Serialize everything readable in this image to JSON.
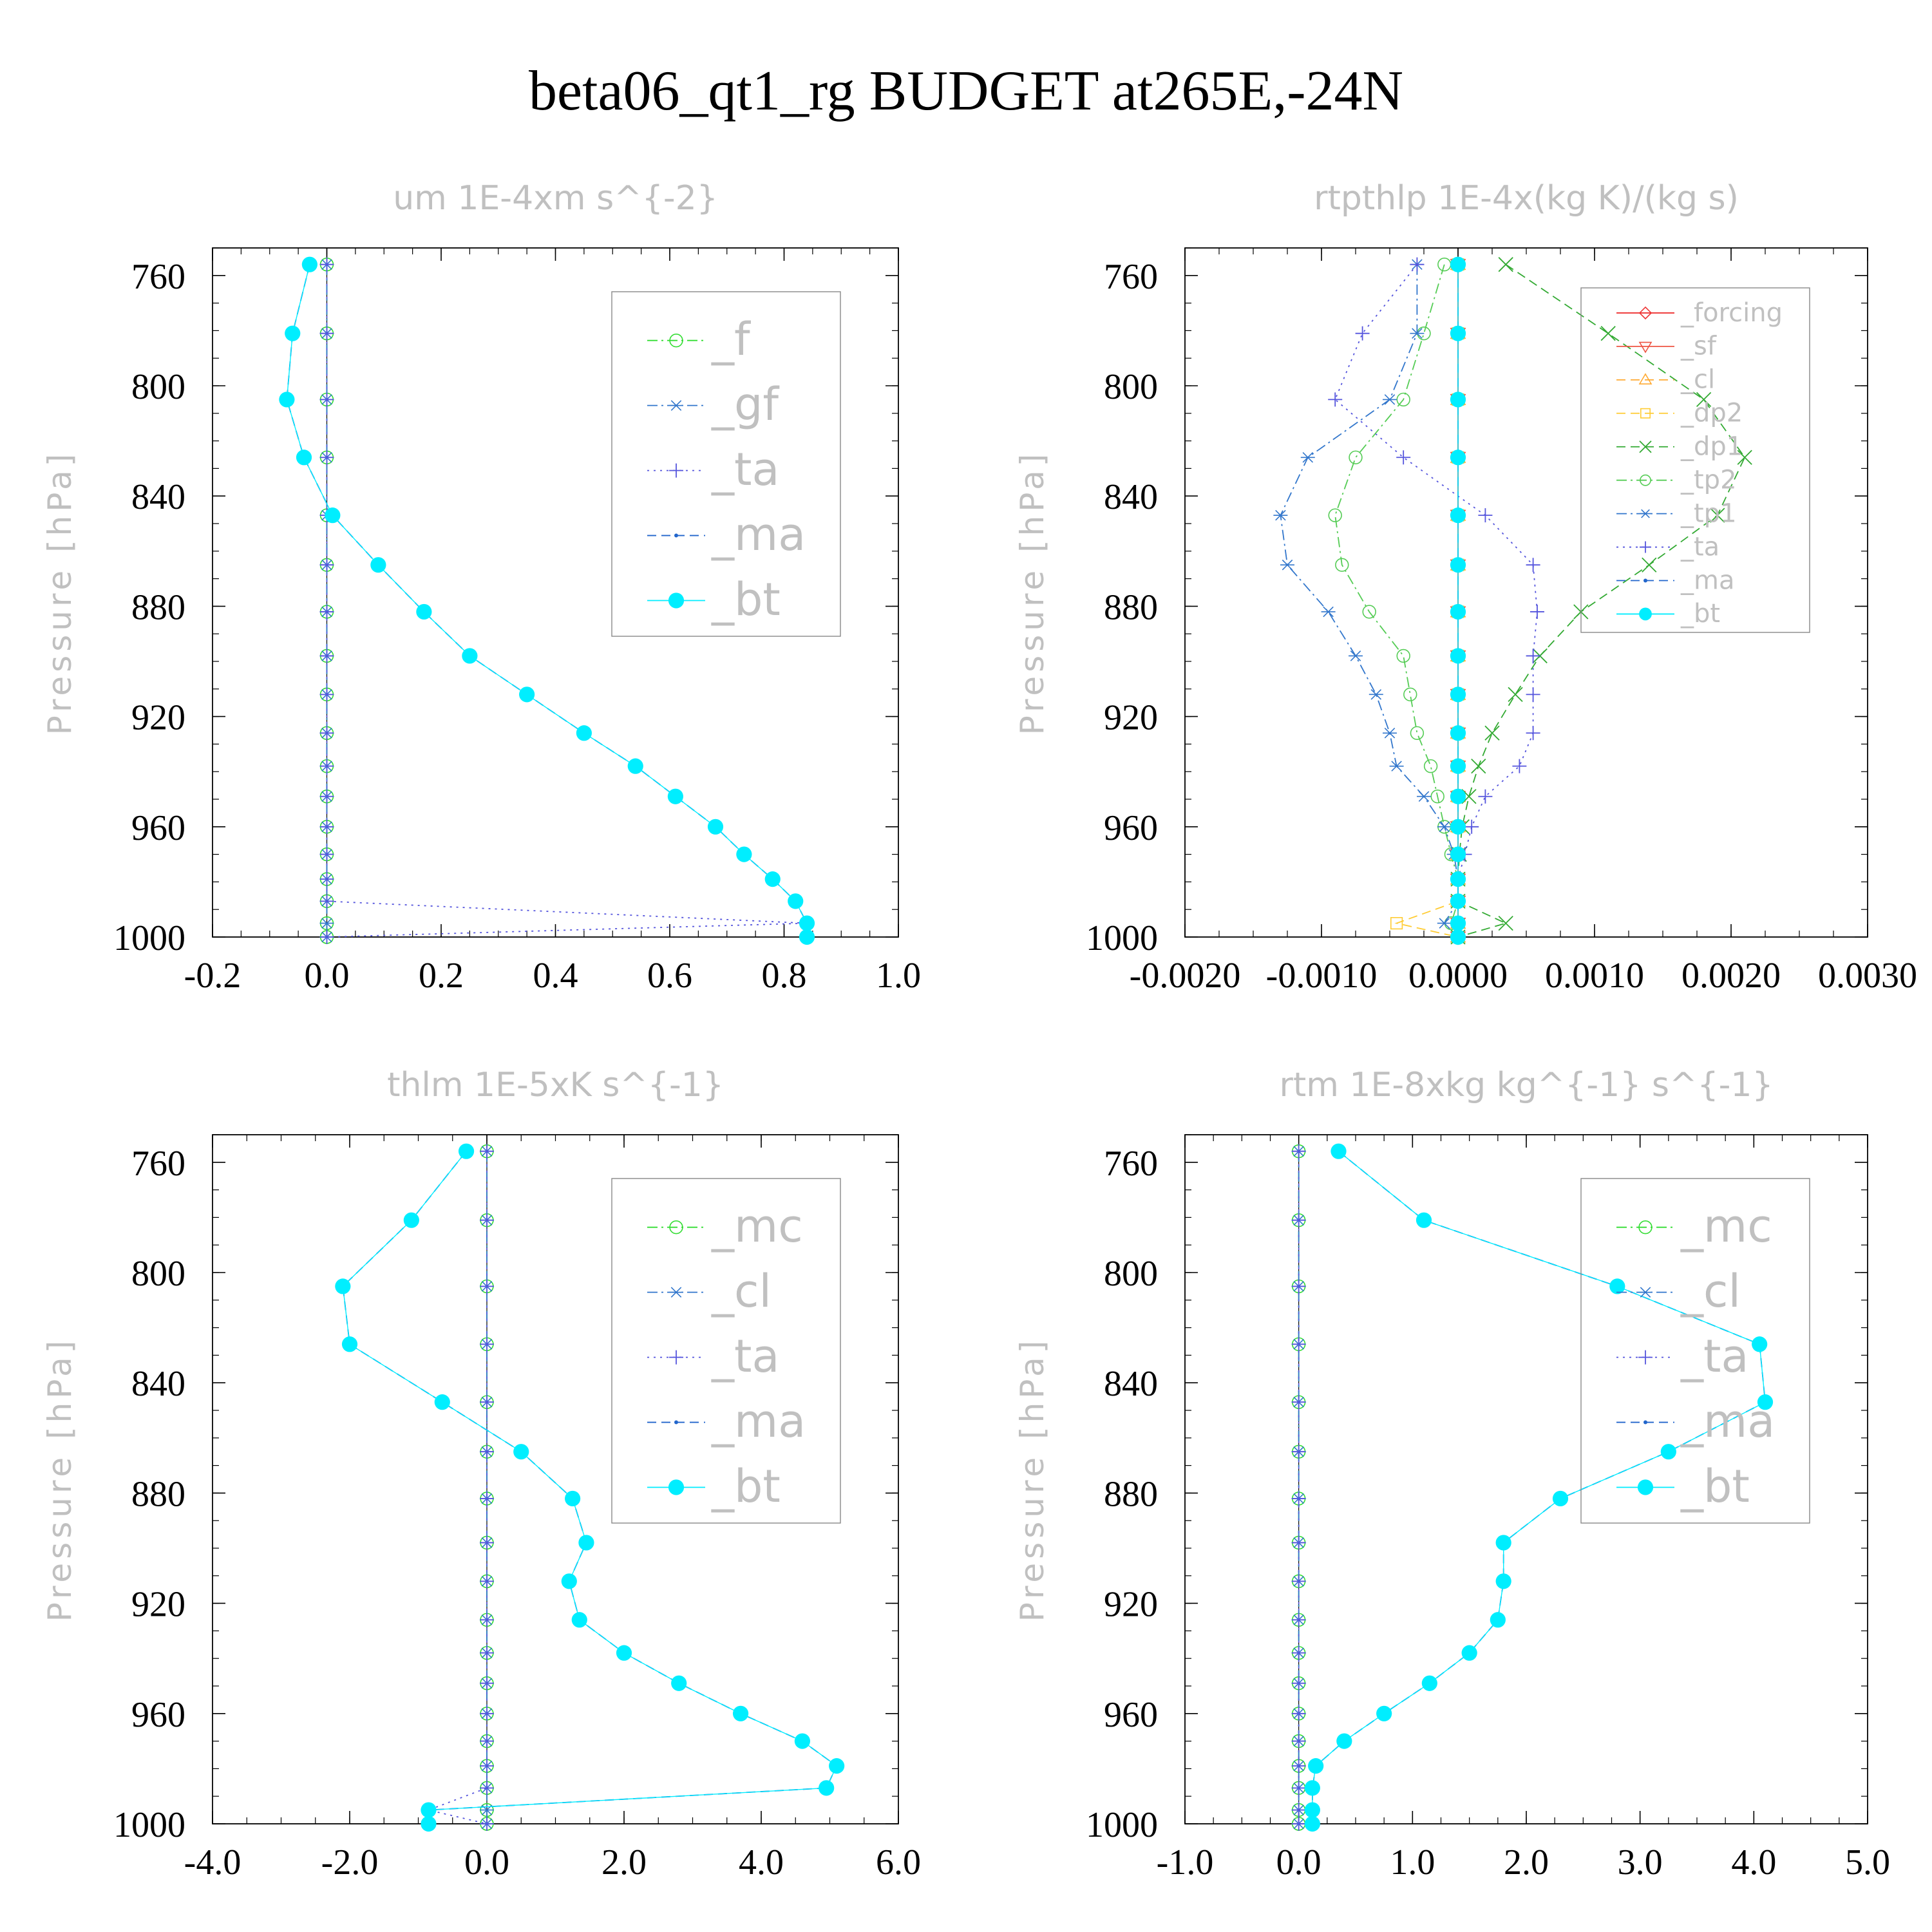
{
  "figure": {
    "title": "beta06_qt1_rg  BUDGET at265E,-24N"
  },
  "chart_data": [
    {
      "type": "line",
      "title": "um  1E-4xm s^{-2}",
      "ylabel": "Pressure [hPa]",
      "xlabel": "",
      "xlim": [
        -0.2,
        1.0
      ],
      "ylim": [
        1000,
        750
      ],
      "xticks": [
        "-0.2",
        "0.0",
        "0.2",
        "0.4",
        "0.6",
        "0.8",
        "1.0"
      ],
      "xtick_values": [
        -0.2,
        0.0,
        0.2,
        0.4,
        0.6,
        0.8,
        1.0
      ],
      "yticks": [
        "760",
        "800",
        "840",
        "880",
        "920",
        "960",
        "1000"
      ],
      "ytick_values": [
        760,
        800,
        840,
        880,
        920,
        960,
        1000
      ],
      "legend_position": "top-right",
      "legend_size": "large",
      "y": [
        756,
        781,
        805,
        826,
        847,
        865,
        882,
        898,
        912,
        926,
        938,
        949,
        960,
        970,
        979,
        987,
        995,
        1000
      ],
      "series": [
        {
          "name": "_f",
          "color": "#33dd33",
          "dash": "dashdot",
          "marker": "circle",
          "x": [
            0,
            0,
            0,
            0,
            0,
            0,
            0,
            0,
            0,
            0,
            0,
            0,
            0,
            0,
            0,
            0,
            0,
            0
          ]
        },
        {
          "name": "_gf",
          "color": "#3377cc",
          "dash": "dashdot",
          "marker": "asterisk",
          "x": [
            0,
            0,
            0,
            0,
            0,
            0,
            0,
            0,
            0,
            0,
            0,
            0,
            0,
            0,
            0,
            0,
            0,
            0
          ]
        },
        {
          "name": "_ta",
          "color": "#5555dd",
          "dash": "dotted",
          "marker": "plus",
          "x": [
            0,
            0,
            0,
            0,
            0,
            0,
            0,
            0,
            0,
            0,
            0,
            0,
            0,
            0,
            0,
            0,
            0.84,
            0.0
          ]
        },
        {
          "name": "_ma",
          "color": "#2266cc",
          "dash": "dashed",
          "marker": "dot",
          "x": [
            -0.03,
            -0.06,
            -0.07,
            -0.04,
            0.01,
            0.09,
            0.17,
            0.25,
            0.35,
            0.45,
            0.54,
            0.61,
            0.68,
            0.73,
            0.78,
            0.82,
            0.84,
            0.84
          ]
        },
        {
          "name": "_bt",
          "color": "#00eeff",
          "dash": "solid",
          "marker": "filled",
          "x": [
            -0.03,
            -0.06,
            -0.07,
            -0.04,
            0.01,
            0.09,
            0.17,
            0.25,
            0.35,
            0.45,
            0.54,
            0.61,
            0.68,
            0.73,
            0.78,
            0.82,
            0.84,
            0.84
          ]
        }
      ]
    },
    {
      "type": "line",
      "title": "rtpthlp  1E-4x(kg K)/(kg s)",
      "ylabel": "Pressure [hPa]",
      "xlabel": "",
      "xlim": [
        -0.002,
        0.003
      ],
      "ylim": [
        1000,
        750
      ],
      "xticks": [
        "-0.0020",
        "-0.0010",
        "0.0000",
        "0.0010",
        "0.0020",
        "0.0030"
      ],
      "xtick_values": [
        -0.002,
        -0.001,
        0.0,
        0.001,
        0.002,
        0.003
      ],
      "yticks": [
        "760",
        "800",
        "840",
        "880",
        "920",
        "960",
        "1000"
      ],
      "ytick_values": [
        760,
        800,
        840,
        880,
        920,
        960,
        1000
      ],
      "legend_position": "top-right",
      "legend_size": "small",
      "y": [
        756,
        781,
        805,
        826,
        847,
        865,
        882,
        898,
        912,
        926,
        938,
        949,
        960,
        970,
        979,
        987,
        995,
        1000
      ],
      "series": [
        {
          "name": "_forcing",
          "color": "#ee3333",
          "dash": "solid",
          "marker": "diamond",
          "x": [
            0,
            0,
            0,
            0,
            0,
            0,
            0,
            0,
            0,
            0,
            0,
            0,
            0,
            0,
            0,
            0,
            0,
            0
          ]
        },
        {
          "name": "_sf",
          "color": "#ee5544",
          "dash": "solid",
          "marker": "triangle-down",
          "x": [
            0,
            0,
            0,
            0,
            0,
            0,
            0,
            0,
            0,
            0,
            0,
            0,
            0,
            0,
            0,
            0,
            0,
            0
          ]
        },
        {
          "name": "_cl",
          "color": "#ffaa33",
          "dash": "dashed",
          "marker": "triangle-up",
          "x": [
            0,
            0,
            0,
            0,
            0,
            0,
            0,
            0,
            0,
            0,
            0,
            0,
            0,
            0,
            0,
            0,
            0,
            0
          ]
        },
        {
          "name": "_dp2",
          "color": "#ffcc33",
          "dash": "dashed",
          "marker": "square",
          "x": [
            0,
            0,
            0,
            0,
            0,
            0,
            0,
            0,
            0,
            0,
            0,
            0,
            0,
            0,
            0,
            0,
            -0.00045,
            0
          ]
        },
        {
          "name": "_dp1",
          "color": "#33aa33",
          "dash": "dashed",
          "marker": "x",
          "x": [
            0.00035,
            0.0011,
            0.0018,
            0.0021,
            0.0019,
            0.0014,
            0.0009,
            0.0006,
            0.00042,
            0.00025,
            0.00015,
            8e-05,
            3e-05,
            1e-05,
            0.0,
            0.0,
            0.00035,
            0.0
          ]
        },
        {
          "name": "_tp2",
          "color": "#55cc55",
          "dash": "dashdot",
          "marker": "circle",
          "x": [
            -0.0001,
            -0.00025,
            -0.0004,
            -0.00075,
            -0.0009,
            -0.00085,
            -0.00065,
            -0.0004,
            -0.00035,
            -0.0003,
            -0.0002,
            -0.00015,
            -0.0001,
            -5e-05,
            0.0,
            0.0,
            -5e-05,
            0.0
          ]
        },
        {
          "name": "_tp1",
          "color": "#3377cc",
          "dash": "dashdot",
          "marker": "asterisk",
          "x": [
            -0.0003,
            -0.0003,
            -0.0005,
            -0.0011,
            -0.0013,
            -0.00125,
            -0.00095,
            -0.00075,
            -0.0006,
            -0.0005,
            -0.00045,
            -0.00025,
            -0.0001,
            -3e-05,
            0.0,
            0.0,
            -0.0001,
            0.0
          ]
        },
        {
          "name": "_ta",
          "color": "#5555dd",
          "dash": "dotted",
          "marker": "plus",
          "x": [
            -0.0003,
            -0.0007,
            -0.0009,
            -0.0004,
            0.0002,
            0.00055,
            0.00058,
            0.00055,
            0.00055,
            0.00055,
            0.00045,
            0.0002,
            0.0001,
            5e-05,
            0.0,
            0.0,
            0.0,
            0.0
          ]
        },
        {
          "name": "_ma",
          "color": "#2266cc",
          "dash": "dashed",
          "marker": "dot",
          "x": [
            0,
            0,
            0,
            0,
            0,
            0,
            0,
            0,
            0,
            0,
            0,
            0,
            0,
            0,
            0,
            0,
            0,
            0
          ]
        },
        {
          "name": "_bt",
          "color": "#00eeff",
          "dash": "solid",
          "marker": "filled",
          "x": [
            0,
            0,
            0,
            0,
            0,
            0,
            0,
            0,
            0,
            0,
            0,
            0,
            0,
            0,
            0,
            0,
            0,
            0
          ]
        }
      ]
    },
    {
      "type": "line",
      "title": "thlm  1E-5xK s^{-1}",
      "ylabel": "Pressure [hPa]",
      "xlabel": "",
      "xlim": [
        -4.0,
        6.0
      ],
      "ylim": [
        1000,
        750
      ],
      "xticks": [
        "-4.0",
        "-2.0",
        "0.0",
        "2.0",
        "4.0",
        "6.0"
      ],
      "xtick_values": [
        -4.0,
        -2.0,
        0.0,
        2.0,
        4.0,
        6.0
      ],
      "yticks": [
        "760",
        "800",
        "840",
        "880",
        "920",
        "960",
        "1000"
      ],
      "ytick_values": [
        760,
        800,
        840,
        880,
        920,
        960,
        1000
      ],
      "legend_position": "top-right",
      "legend_size": "large",
      "y": [
        756,
        781,
        805,
        826,
        847,
        865,
        882,
        898,
        912,
        926,
        938,
        949,
        960,
        970,
        979,
        987,
        995,
        1000
      ],
      "series": [
        {
          "name": "_mc",
          "color": "#33dd33",
          "dash": "dashdot",
          "marker": "circle",
          "x": [
            0,
            0,
            0,
            0,
            0,
            0,
            0,
            0,
            0,
            0,
            0,
            0,
            0,
            0,
            0,
            0,
            0,
            0
          ]
        },
        {
          "name": "_cl",
          "color": "#3377cc",
          "dash": "dashdot",
          "marker": "asterisk",
          "x": [
            0,
            0,
            0,
            0,
            0,
            0,
            0,
            0,
            0,
            0,
            0,
            0,
            0,
            0,
            0,
            0,
            0,
            0
          ]
        },
        {
          "name": "_ta",
          "color": "#5555dd",
          "dash": "dotted",
          "marker": "plus",
          "x": [
            0,
            0,
            0,
            0,
            0,
            0,
            0,
            0,
            0,
            0,
            0,
            0,
            0,
            0,
            0,
            0,
            -0.85,
            0
          ]
        },
        {
          "name": "_ma",
          "color": "#2266cc",
          "dash": "dashed",
          "marker": "dot",
          "x": [
            -0.3,
            -1.1,
            -2.1,
            -2.0,
            -0.65,
            0.5,
            1.25,
            1.45,
            1.2,
            1.35,
            2.0,
            2.8,
            3.7,
            4.6,
            5.1,
            4.95,
            -0.85,
            -0.85
          ]
        },
        {
          "name": "_bt",
          "color": "#00eeff",
          "dash": "solid",
          "marker": "filled",
          "x": [
            -0.3,
            -1.1,
            -2.1,
            -2.0,
            -0.65,
            0.5,
            1.25,
            1.45,
            1.2,
            1.35,
            2.0,
            2.8,
            3.7,
            4.6,
            5.1,
            4.95,
            -0.85,
            -0.85
          ]
        }
      ]
    },
    {
      "type": "line",
      "title": "rtm  1E-8xkg kg^{-1} s^{-1}",
      "ylabel": "Pressure [hPa]",
      "xlabel": "",
      "xlim": [
        -1.0,
        5.0
      ],
      "ylim": [
        1000,
        750
      ],
      "xticks": [
        "-1.0",
        "0.0",
        "1.0",
        "2.0",
        "3.0",
        "4.0",
        "5.0"
      ],
      "xtick_values": [
        -1.0,
        0.0,
        1.0,
        2.0,
        3.0,
        4.0,
        5.0
      ],
      "yticks": [
        "760",
        "800",
        "840",
        "880",
        "920",
        "960",
        "1000"
      ],
      "ytick_values": [
        760,
        800,
        840,
        880,
        920,
        960,
        1000
      ],
      "legend_position": "top-right",
      "legend_size": "large",
      "y": [
        756,
        781,
        805,
        826,
        847,
        865,
        882,
        898,
        912,
        926,
        938,
        949,
        960,
        970,
        979,
        987,
        995,
        1000
      ],
      "series": [
        {
          "name": "_mc",
          "color": "#33dd33",
          "dash": "dashdot",
          "marker": "circle",
          "x": [
            0,
            0,
            0,
            0,
            0,
            0,
            0,
            0,
            0,
            0,
            0,
            0,
            0,
            0,
            0,
            0,
            0,
            0
          ]
        },
        {
          "name": "_cl",
          "color": "#3377cc",
          "dash": "dashdot",
          "marker": "asterisk",
          "x": [
            0,
            0,
            0,
            0,
            0,
            0,
            0,
            0,
            0,
            0,
            0,
            0,
            0,
            0,
            0,
            0,
            0,
            0
          ]
        },
        {
          "name": "_ta",
          "color": "#5555dd",
          "dash": "dotted",
          "marker": "plus",
          "x": [
            0,
            0,
            0,
            0,
            0,
            0,
            0,
            0,
            0,
            0,
            0,
            0,
            0,
            0,
            0,
            0,
            0,
            0
          ]
        },
        {
          "name": "_ma",
          "color": "#2266cc",
          "dash": "dashed",
          "marker": "dot",
          "x": [
            0.35,
            1.1,
            2.8,
            4.05,
            4.1,
            3.25,
            2.3,
            1.8,
            1.8,
            1.75,
            1.5,
            1.15,
            0.75,
            0.4,
            0.15,
            0.12,
            0.12,
            0.12
          ]
        },
        {
          "name": "_bt",
          "color": "#00eeff",
          "dash": "solid",
          "marker": "filled",
          "x": [
            0.35,
            1.1,
            2.8,
            4.05,
            4.1,
            3.25,
            2.3,
            1.8,
            1.8,
            1.75,
            1.5,
            1.15,
            0.75,
            0.4,
            0.15,
            0.12,
            0.12,
            0.12
          ]
        }
      ]
    }
  ]
}
